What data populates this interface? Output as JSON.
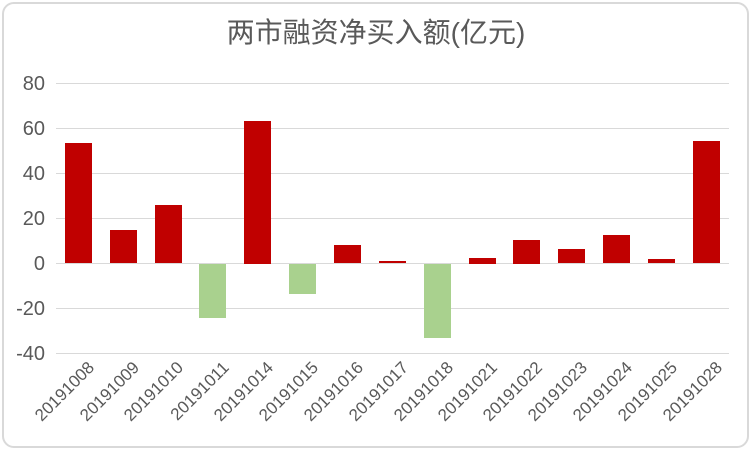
{
  "chart_data": {
    "type": "bar",
    "title": "两市融资净买入额(亿元)",
    "categories": [
      "20191008",
      "20191009",
      "20191010",
      "20191011",
      "20191014",
      "20191015",
      "20191016",
      "20191017",
      "20191018",
      "20191021",
      "20191022",
      "20191023",
      "20191024",
      "20191025",
      "20191028"
    ],
    "values": [
      53.4,
      14.9,
      25.9,
      -24.4,
      63.5,
      -13.6,
      8.1,
      0.9,
      -33.2,
      2.5,
      10.5,
      6.4,
      12.8,
      2.2,
      54.6
    ],
    "xlabel": "",
    "ylabel": "",
    "ylim": [
      -40,
      80
    ],
    "yticks": [
      80,
      60,
      40,
      20,
      0,
      -20,
      -40
    ],
    "grid": true,
    "legend": false,
    "colors": {
      "positive": "#C00000",
      "negative": "#A9D18E",
      "gridline": "#D9D9D9",
      "text": "#595959",
      "border": "#D9D9D9",
      "background": "#FFFFFF"
    }
  }
}
